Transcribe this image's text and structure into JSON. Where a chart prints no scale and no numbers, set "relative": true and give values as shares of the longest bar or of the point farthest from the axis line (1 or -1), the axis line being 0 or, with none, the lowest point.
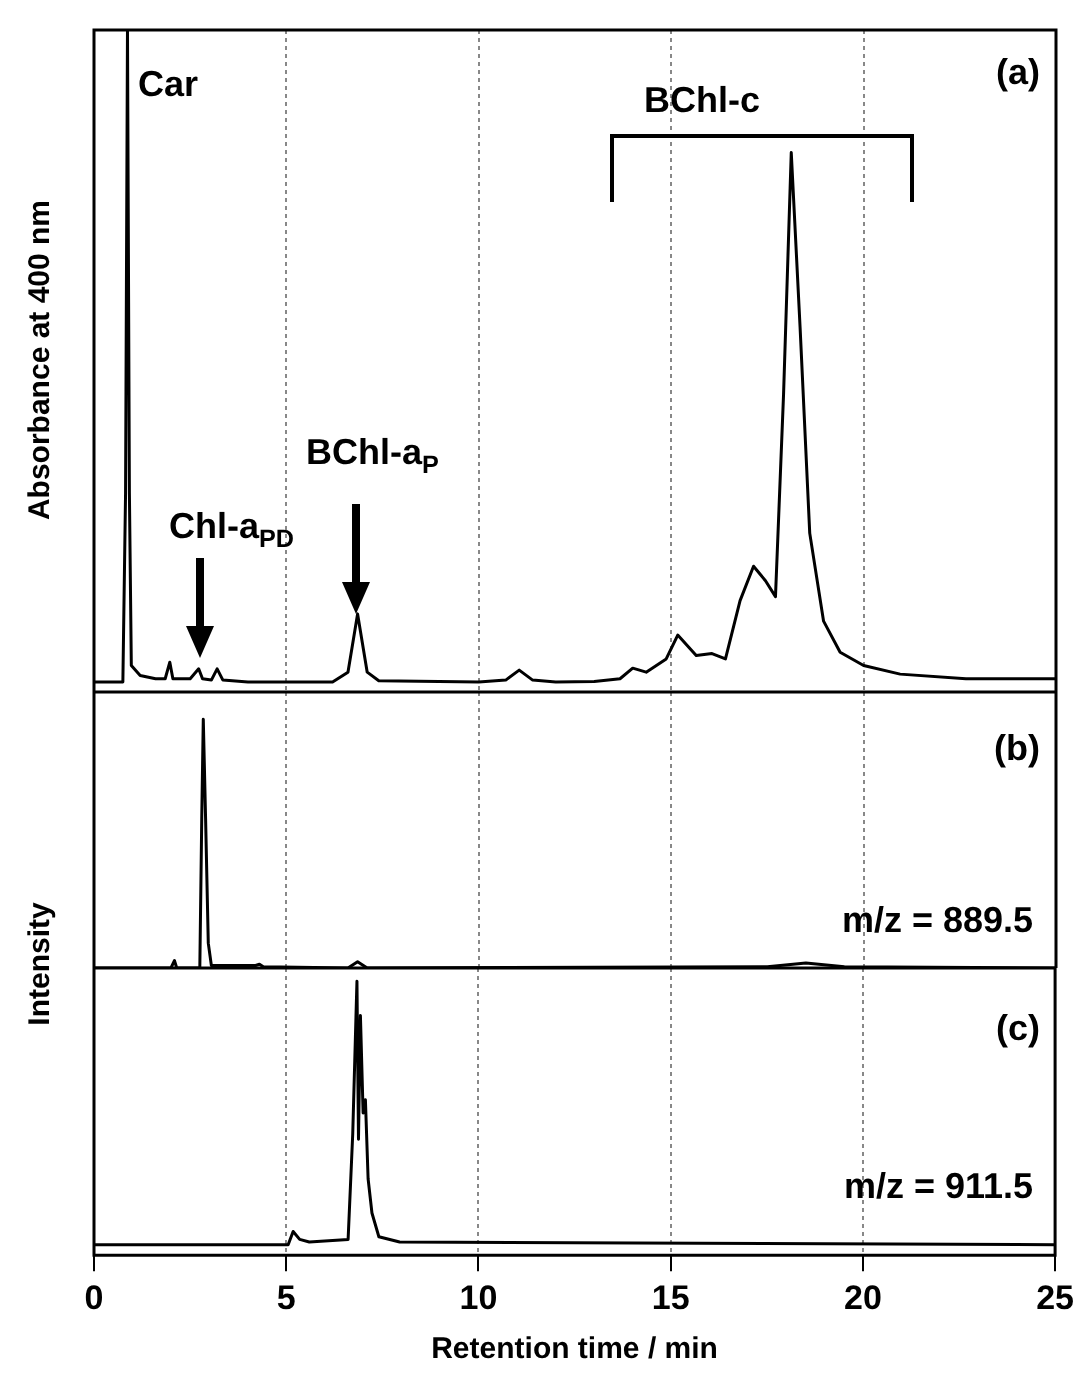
{
  "chart_data": [
    {
      "type": "line",
      "relative": true,
      "ylabel": "Absorbance at 400 nm",
      "xlim": [
        0,
        25
      ],
      "xticks": [
        0,
        5,
        10,
        15,
        20,
        25
      ],
      "grid": "x",
      "tick_labels": false,
      "color": "#000000",
      "x": [
        0,
        0.75,
        0.82,
        0.87,
        0.92,
        0.97,
        1.2,
        1.6,
        1.85,
        1.97,
        2.05,
        2.5,
        2.72,
        2.82,
        3.05,
        3.2,
        3.35,
        4,
        6.2,
        6.6,
        6.85,
        7.1,
        7.4,
        10,
        10.7,
        11.05,
        11.4,
        12,
        13,
        13.67,
        14,
        14.35,
        14.87,
        15.17,
        15.65,
        16.06,
        16.41,
        16.79,
        17.14,
        17.45,
        17.71,
        17.92,
        18.12,
        18.35,
        18.6,
        18.96,
        19.39,
        20,
        20.95,
        22.66,
        25
      ],
      "values": [
        0.015,
        0.015,
        0.3,
        1,
        0.3,
        0.04,
        0.025,
        0.02,
        0.02,
        0.045,
        0.02,
        0.02,
        0.035,
        0.02,
        0.018,
        0.035,
        0.018,
        0.015,
        0.015,
        0.03,
        0.118,
        0.03,
        0.017,
        0.015,
        0.018,
        0.033,
        0.018,
        0.015,
        0.016,
        0.02,
        0.036,
        0.03,
        0.05,
        0.086,
        0.055,
        0.058,
        0.05,
        0.138,
        0.19,
        0.168,
        0.144,
        0.45,
        0.815,
        0.55,
        0.24,
        0.107,
        0.06,
        0.04,
        0.027,
        0.02,
        0.02
      ],
      "annotations": [
        "Car",
        "(a)",
        "BChl-c",
        "Chl-a$_{PD}$",
        "BChl-a$_{P}$"
      ]
    },
    {
      "type": "line",
      "relative": true,
      "ylabel": "Intensity",
      "xlim": [
        0,
        25
      ],
      "xticks": [
        0,
        5,
        10,
        15,
        20,
        25
      ],
      "grid": "x",
      "tick_labels": false,
      "color": "#000000",
      "x": [
        0,
        2,
        2.09,
        2.15,
        2.75,
        2.8,
        2.84,
        2.9,
        2.97,
        3.05,
        4.2,
        4.3,
        4.4,
        6.6,
        6.85,
        7.1,
        17.5,
        18.5,
        19.5,
        25
      ],
      "values": [
        0,
        0,
        0.03,
        0,
        0,
        0.6,
        1,
        0.6,
        0.1,
        0.01,
        0.01,
        0.015,
        0.005,
        0,
        0.025,
        0,
        0.005,
        0.02,
        0.005,
        0
      ],
      "annotations": [
        "(b)",
        "m/z = 889.5"
      ]
    },
    {
      "type": "line",
      "relative": true,
      "xlabel": "Retention time / min",
      "xlim": [
        0,
        25
      ],
      "xticks": [
        0,
        5,
        10,
        15,
        20,
        25
      ],
      "grid": "x",
      "tick_labels": "x",
      "color": "#000000",
      "x": [
        0,
        5.05,
        5.18,
        5.35,
        5.6,
        6.61,
        6.73,
        6.84,
        6.88,
        6.93,
        7,
        7.06,
        7.13,
        7.23,
        7.41,
        7.95,
        25
      ],
      "values": [
        0,
        0,
        0.05,
        0.02,
        0.01,
        0.02,
        0.42,
        1,
        0.4,
        0.87,
        0.5,
        0.55,
        0.25,
        0.12,
        0.03,
        0.01,
        0
      ],
      "annotations": [
        "(c)",
        "m/z = 911.5"
      ]
    }
  ]
}
